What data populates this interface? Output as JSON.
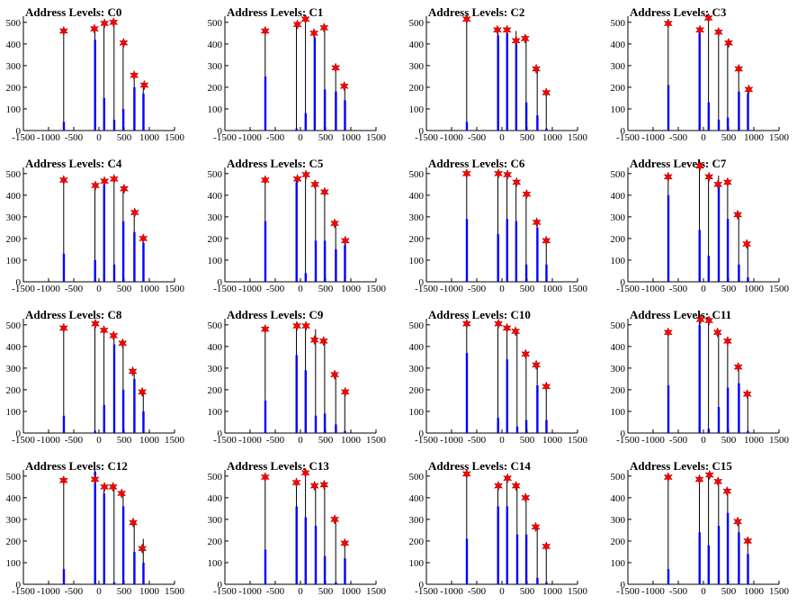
{
  "chart_data": {
    "type": "bar",
    "grid": false,
    "legend": "none",
    "colors": {
      "histogram": "#0000ff",
      "marker": "#ff0000",
      "axis": "#000000"
    },
    "xlim": [
      -1500,
      1500
    ],
    "ylim": [
      0,
      520
    ],
    "xticks": [
      -1500,
      -1000,
      -500,
      0,
      500,
      1000,
      1500
    ],
    "yticks": [
      0,
      100,
      200,
      300,
      400,
      500
    ],
    "panels": [
      {
        "title": "Address Levels: C0",
        "bars": [
          [
            -700,
            470,
            40
          ],
          [
            -80,
            470,
            420
          ],
          [
            100,
            500,
            150
          ],
          [
            300,
            500,
            50
          ],
          [
            480,
            420,
            100
          ],
          [
            700,
            260,
            200
          ],
          [
            880,
            210,
            170
          ]
        ],
        "peaks": [
          [
            -700,
            460
          ],
          [
            -90,
            470
          ],
          [
            110,
            495
          ],
          [
            290,
            500
          ],
          [
            490,
            405
          ],
          [
            700,
            255
          ],
          [
            900,
            210
          ]
        ]
      },
      {
        "title": "Address Levels: C1",
        "bars": [
          [
            -700,
            470,
            250
          ],
          [
            -80,
            500,
            10
          ],
          [
            100,
            520,
            80
          ],
          [
            280,
            460,
            430
          ],
          [
            480,
            480,
            190
          ],
          [
            700,
            290,
            180
          ],
          [
            880,
            200,
            140
          ]
        ],
        "peaks": [
          [
            -700,
            460
          ],
          [
            -60,
            490
          ],
          [
            100,
            515
          ],
          [
            270,
            450
          ],
          [
            470,
            475
          ],
          [
            700,
            290
          ],
          [
            870,
            205
          ]
        ]
      },
      {
        "title": "Address Levels: C2",
        "bars": [
          [
            -700,
            520,
            40
          ],
          [
            -80,
            470,
            440
          ],
          [
            100,
            470,
            450
          ],
          [
            280,
            460,
            410
          ],
          [
            480,
            440,
            130
          ],
          [
            700,
            290,
            70
          ],
          [
            880,
            180,
            10
          ]
        ],
        "peaks": [
          [
            -700,
            515
          ],
          [
            -90,
            465
          ],
          [
            100,
            465
          ],
          [
            280,
            415
          ],
          [
            460,
            425
          ],
          [
            680,
            285
          ],
          [
            880,
            175
          ]
        ]
      },
      {
        "title": "Address Levels: C3",
        "bars": [
          [
            -700,
            500,
            210
          ],
          [
            -80,
            470,
            460
          ],
          [
            100,
            520,
            130
          ],
          [
            300,
            470,
            50
          ],
          [
            480,
            410,
            60
          ],
          [
            700,
            290,
            180
          ],
          [
            880,
            190,
            170
          ]
        ],
        "peaks": [
          [
            -700,
            495
          ],
          [
            -70,
            465
          ],
          [
            100,
            520
          ],
          [
            300,
            455
          ],
          [
            500,
            405
          ],
          [
            700,
            285
          ],
          [
            900,
            190
          ]
        ]
      },
      {
        "title": "Address Levels: C4",
        "bars": [
          [
            -700,
            480,
            130
          ],
          [
            -80,
            450,
            100
          ],
          [
            100,
            470,
            450
          ],
          [
            300,
            480,
            80
          ],
          [
            480,
            440,
            280
          ],
          [
            700,
            320,
            230
          ],
          [
            880,
            200,
            180
          ]
        ],
        "peaks": [
          [
            -700,
            470
          ],
          [
            -70,
            445
          ],
          [
            110,
            465
          ],
          [
            300,
            475
          ],
          [
            500,
            430
          ],
          [
            710,
            320
          ],
          [
            880,
            200
          ]
        ]
      },
      {
        "title": "Address Levels: C5",
        "bars": [
          [
            -700,
            480,
            280
          ],
          [
            -80,
            480,
            460
          ],
          [
            100,
            500,
            40
          ],
          [
            300,
            460,
            190
          ],
          [
            480,
            420,
            190
          ],
          [
            700,
            270,
            150
          ],
          [
            880,
            190,
            170
          ]
        ],
        "peaks": [
          [
            -700,
            470
          ],
          [
            -60,
            475
          ],
          [
            110,
            495
          ],
          [
            290,
            450
          ],
          [
            480,
            415
          ],
          [
            680,
            270
          ],
          [
            890,
            190
          ]
        ]
      },
      {
        "title": "Address Levels: C6",
        "bars": [
          [
            -700,
            500,
            290
          ],
          [
            -80,
            500,
            220
          ],
          [
            100,
            500,
            290
          ],
          [
            280,
            460,
            280
          ],
          [
            480,
            410,
            80
          ],
          [
            700,
            280,
            250
          ],
          [
            880,
            190,
            80
          ]
        ],
        "peaks": [
          [
            -700,
            500
          ],
          [
            -70,
            500
          ],
          [
            110,
            495
          ],
          [
            290,
            460
          ],
          [
            490,
            405
          ],
          [
            690,
            275
          ],
          [
            880,
            190
          ]
        ]
      },
      {
        "title": "Address Levels: C7",
        "bars": [
          [
            -700,
            490,
            400
          ],
          [
            -80,
            540,
            240
          ],
          [
            100,
            490,
            120
          ],
          [
            300,
            490,
            440
          ],
          [
            480,
            460,
            290
          ],
          [
            700,
            320,
            80
          ],
          [
            880,
            180,
            20
          ]
        ],
        "peaks": [
          [
            -700,
            485
          ],
          [
            -70,
            535
          ],
          [
            110,
            485
          ],
          [
            290,
            450
          ],
          [
            480,
            460
          ],
          [
            680,
            310
          ],
          [
            860,
            175
          ]
        ]
      },
      {
        "title": "Address Levels: C8",
        "bars": [
          [
            -700,
            490,
            80
          ],
          [
            -80,
            510,
            10
          ],
          [
            100,
            480,
            130
          ],
          [
            300,
            450,
            410
          ],
          [
            480,
            420,
            200
          ],
          [
            700,
            290,
            250
          ],
          [
            880,
            190,
            100
          ]
        ],
        "peaks": [
          [
            -700,
            485
          ],
          [
            -70,
            505
          ],
          [
            100,
            475
          ],
          [
            290,
            450
          ],
          [
            470,
            415
          ],
          [
            670,
            285
          ],
          [
            860,
            190
          ]
        ]
      },
      {
        "title": "Address Levels: C9",
        "bars": [
          [
            -700,
            490,
            150
          ],
          [
            -80,
            500,
            360
          ],
          [
            100,
            500,
            290
          ],
          [
            300,
            480,
            80
          ],
          [
            480,
            430,
            90
          ],
          [
            700,
            270,
            40
          ],
          [
            880,
            190,
            10
          ]
        ],
        "peaks": [
          [
            -700,
            480
          ],
          [
            -70,
            495
          ],
          [
            110,
            495
          ],
          [
            280,
            430
          ],
          [
            460,
            425
          ],
          [
            680,
            270
          ],
          [
            890,
            190
          ]
        ]
      },
      {
        "title": "Address Levels: C10",
        "bars": [
          [
            -700,
            510,
            370
          ],
          [
            -80,
            510,
            70
          ],
          [
            100,
            490,
            340
          ],
          [
            300,
            470,
            30
          ],
          [
            480,
            380,
            60
          ],
          [
            700,
            320,
            220
          ],
          [
            880,
            220,
            60
          ]
        ],
        "peaks": [
          [
            -700,
            505
          ],
          [
            -70,
            505
          ],
          [
            100,
            485
          ],
          [
            270,
            470
          ],
          [
            470,
            365
          ],
          [
            680,
            315
          ],
          [
            880,
            215
          ]
        ]
      },
      {
        "title": "Address Levels: C11",
        "bars": [
          [
            -700,
            470,
            220
          ],
          [
            -80,
            530,
            500
          ],
          [
            100,
            530,
            20
          ],
          [
            300,
            470,
            120
          ],
          [
            480,
            430,
            210
          ],
          [
            700,
            310,
            230
          ],
          [
            880,
            180,
            10
          ]
        ],
        "peaks": [
          [
            -700,
            465
          ],
          [
            -60,
            525
          ],
          [
            110,
            520
          ],
          [
            280,
            465
          ],
          [
            480,
            425
          ],
          [
            690,
            305
          ],
          [
            870,
            180
          ]
        ]
      },
      {
        "title": "Address Levels: C12",
        "bars": [
          [
            -700,
            490,
            70
          ],
          [
            -80,
            540,
            520
          ],
          [
            100,
            460,
            420
          ],
          [
            300,
            460,
            10
          ],
          [
            480,
            430,
            360
          ],
          [
            700,
            290,
            150
          ],
          [
            880,
            210,
            100
          ]
        ],
        "peaks": [
          [
            -700,
            480
          ],
          [
            -80,
            485
          ],
          [
            110,
            450
          ],
          [
            280,
            450
          ],
          [
            450,
            420
          ],
          [
            680,
            285
          ],
          [
            860,
            165
          ]
        ]
      },
      {
        "title": "Address Levels: C13",
        "bars": [
          [
            -700,
            500,
            160
          ],
          [
            -80,
            480,
            360
          ],
          [
            100,
            520,
            310
          ],
          [
            300,
            460,
            270
          ],
          [
            480,
            460,
            130
          ],
          [
            700,
            300,
            10
          ],
          [
            880,
            190,
            120
          ]
        ],
        "peaks": [
          [
            -700,
            495
          ],
          [
            -80,
            470
          ],
          [
            100,
            515
          ],
          [
            280,
            455
          ],
          [
            470,
            460
          ],
          [
            680,
            300
          ],
          [
            880,
            190
          ]
        ]
      },
      {
        "title": "Address Levels: C14",
        "bars": [
          [
            -700,
            510,
            210
          ],
          [
            -80,
            460,
            360
          ],
          [
            100,
            490,
            360
          ],
          [
            300,
            460,
            230
          ],
          [
            480,
            400,
            230
          ],
          [
            700,
            270,
            30
          ],
          [
            880,
            180,
            10
          ]
        ],
        "peaks": [
          [
            -700,
            510
          ],
          [
            -70,
            455
          ],
          [
            110,
            490
          ],
          [
            280,
            455
          ],
          [
            470,
            400
          ],
          [
            670,
            265
          ],
          [
            880,
            175
          ]
        ]
      },
      {
        "title": "Address Levels: C15",
        "bars": [
          [
            -700,
            500,
            70
          ],
          [
            -80,
            490,
            240
          ],
          [
            100,
            510,
            180
          ],
          [
            300,
            480,
            270
          ],
          [
            480,
            440,
            330
          ],
          [
            700,
            290,
            240
          ],
          [
            880,
            200,
            140
          ]
        ],
        "peaks": [
          [
            -700,
            495
          ],
          [
            -80,
            485
          ],
          [
            120,
            505
          ],
          [
            290,
            475
          ],
          [
            470,
            430
          ],
          [
            680,
            290
          ],
          [
            880,
            200
          ]
        ]
      }
    ]
  }
}
